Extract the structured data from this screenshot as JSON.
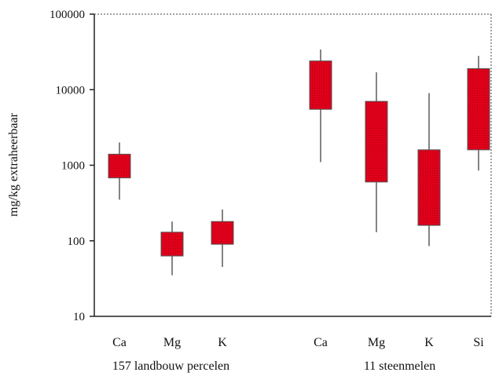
{
  "chart_data": {
    "type": "box",
    "title": "",
    "xlabel": "",
    "ylabel": "mg/kg extraheerbaar",
    "yscale": "log",
    "ylim": [
      10,
      100000
    ],
    "yticks": [
      10,
      100,
      1000,
      10000,
      100000
    ],
    "ytick_labels": [
      "10",
      "100",
      "1000",
      "10000",
      "100000"
    ],
    "grid": false,
    "box_color": "#e0001a",
    "groups": [
      {
        "label": "157 landbouw percelen",
        "items": [
          {
            "category": "Ca",
            "whisker_low": 350,
            "box_low": 680,
            "box_high": 1400,
            "whisker_high": 2000
          },
          {
            "category": "Mg",
            "whisker_low": 35,
            "box_low": 63,
            "box_high": 130,
            "whisker_high": 180
          },
          {
            "category": "K",
            "whisker_low": 45,
            "box_low": 90,
            "box_high": 180,
            "whisker_high": 260
          }
        ]
      },
      {
        "label": "11 steenmelen",
        "items": [
          {
            "category": "Ca",
            "whisker_low": 1100,
            "box_low": 5500,
            "box_high": 24000,
            "whisker_high": 34000
          },
          {
            "category": "Mg",
            "whisker_low": 130,
            "box_low": 600,
            "box_high": 7000,
            "whisker_high": 17000
          },
          {
            "category": "K",
            "whisker_low": 85,
            "box_low": 160,
            "box_high": 1600,
            "whisker_high": 9000
          },
          {
            "category": "Si",
            "whisker_low": 850,
            "box_low": 1600,
            "box_high": 19000,
            "whisker_high": 28000
          }
        ]
      }
    ]
  }
}
